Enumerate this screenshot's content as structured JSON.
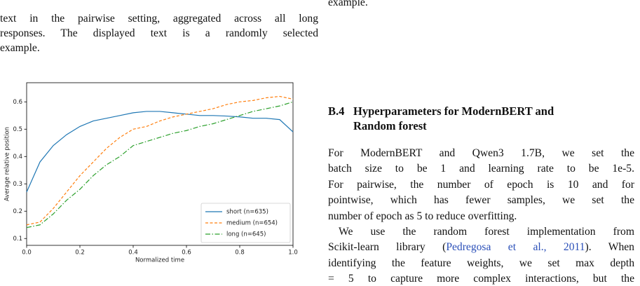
{
  "caption_lines": [
    "text in the pairwise setting, aggregated across all long",
    "responses. The displayed text is a randomly selected",
    "example."
  ],
  "right_top_line": "example.",
  "section": {
    "number": "B.4",
    "title_lines": [
      "Hyperparameters for ModernBERT and",
      "Random forest"
    ]
  },
  "paragraphs": [
    {
      "lines": [
        "For ModernBERT and Qwen3 1.7B, we set the",
        "batch size to be 1 and learning rate to be 1e-5.",
        "For pairwise, the number of epoch is 10 and for",
        "pointwise, which has fewer samples, we set the",
        "number of epoch as 5 to reduce overfitting."
      ]
    },
    {
      "lines": [
        "We use the random forest implementation from",
        {
          "segments": [
            "Scikit-learn library (",
            "Pedregosa et al., 2011",
            "). When"
          ]
        },
        "identifying the feature weights, we set max depth",
        "= 5 to capture more complex interactions, but the"
      ]
    }
  ],
  "chart_data": {
    "type": "line",
    "xlabel": "Normalized time",
    "ylabel": "Average relative position",
    "x": [
      0,
      0.05,
      0.1,
      0.15,
      0.2,
      0.25,
      0.3,
      0.35,
      0.4,
      0.45,
      0.5,
      0.55,
      0.6,
      0.65,
      0.7,
      0.75,
      0.8,
      0.85,
      0.9,
      0.95,
      1.0
    ],
    "series": [
      {
        "name": "short (n=635)",
        "color": "#1f77b4",
        "style": "solid",
        "values": [
          0.27,
          0.38,
          0.44,
          0.48,
          0.51,
          0.53,
          0.54,
          0.55,
          0.56,
          0.565,
          0.565,
          0.56,
          0.555,
          0.55,
          0.55,
          0.548,
          0.545,
          0.54,
          0.54,
          0.535,
          0.49
        ]
      },
      {
        "name": "medium (n=654)",
        "color": "#ff7f0e",
        "style": "dashed",
        "values": [
          0.15,
          0.16,
          0.21,
          0.27,
          0.33,
          0.38,
          0.43,
          0.47,
          0.5,
          0.51,
          0.53,
          0.545,
          0.555,
          0.565,
          0.575,
          0.59,
          0.6,
          0.605,
          0.615,
          0.62,
          0.61
        ]
      },
      {
        "name": "long (n=645)",
        "color": "#2ca02c",
        "style": "dashdot",
        "values": [
          0.14,
          0.15,
          0.19,
          0.24,
          0.28,
          0.33,
          0.37,
          0.4,
          0.44,
          0.455,
          0.47,
          0.485,
          0.495,
          0.51,
          0.52,
          0.535,
          0.55,
          0.565,
          0.575,
          0.585,
          0.6
        ]
      }
    ],
    "xlim": [
      0,
      1
    ],
    "ylim": [
      0.075,
      0.67
    ],
    "xticks": [
      {
        "value": 0,
        "label": "0.0"
      },
      0.2,
      0.4,
      0.6,
      0.8,
      {
        "value": 1,
        "label": "1.0"
      }
    ],
    "yticks": [
      0.1,
      0.2,
      0.3,
      0.4,
      0.5,
      0.6
    ],
    "legend": "lower right"
  }
}
